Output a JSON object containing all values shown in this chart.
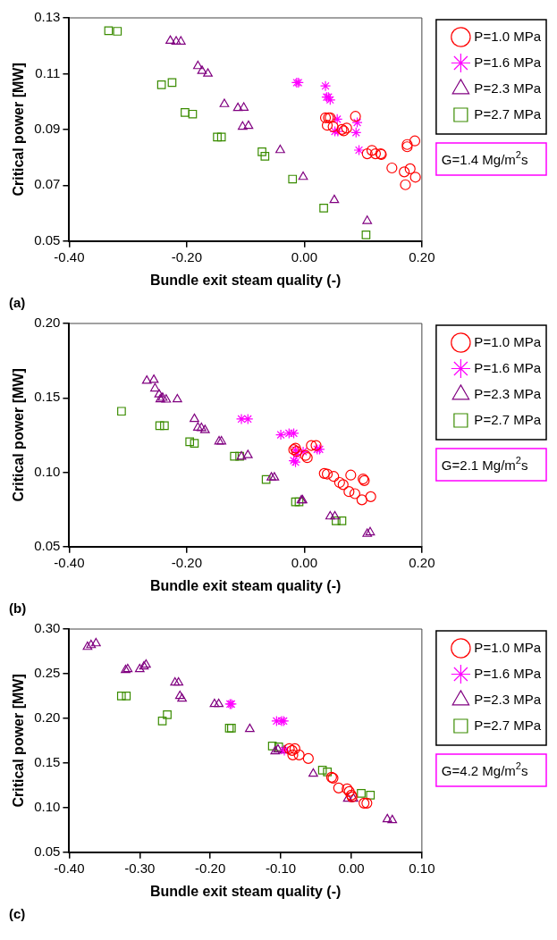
{
  "chart_data": [
    {
      "type": "scatter",
      "xlabel": "Bundle exit steam quality (-)",
      "ylabel": "Critical power [MW]",
      "legend": "right",
      "annotations": [
        "G=1.4 Mg/m$^{2}$s",
        "(a)"
      ],
      "xlim": [
        -0.4,
        0.2
      ],
      "xticks": [
        {
          "value": -0.4,
          "label": "-0.40"
        },
        {
          "value": -0.2,
          "label": "-0.20"
        },
        {
          "value": 0,
          "label": "0.00"
        },
        {
          "value": 0.2,
          "label": "0.20"
        }
      ],
      "ylim": [
        0.05,
        0.13
      ],
      "yticks": [
        0.05,
        0.07,
        0.09,
        0.11,
        0.13
      ],
      "series": [
        {
          "name": "P=1.0 MPa",
          "color": "#ff0000",
          "marker": "circle",
          "x": [
            0.036,
            0.041,
            0.044,
            0.039,
            0.049,
            0.064,
            0.067,
            0.072,
            0.087,
            0.107,
            0.115,
            0.121,
            0.13,
            0.131,
            0.149,
            0.17,
            0.18,
            0.189,
            0.172,
            0.175,
            0.175,
            0.188
          ],
          "values": [
            0.0942,
            0.0942,
            0.0942,
            0.0915,
            0.091,
            0.09,
            0.0895,
            0.0905,
            0.0947,
            0.0813,
            0.0825,
            0.0813,
            0.0813,
            0.081,
            0.0762,
            0.0748,
            0.0759,
            0.0729,
            0.0702,
            0.0846,
            0.0838,
            0.0859
          ]
        },
        {
          "name": "P=1.6 MPa",
          "color": "#ff00ff",
          "marker": "cross",
          "x": [
            -0.013,
            -0.01,
            0.036,
            0.038,
            0.041,
            0.044,
            0.056,
            0.052,
            0.057,
            0.09,
            0.088,
            0.093
          ],
          "values": [
            0.1068,
            0.1068,
            0.1056,
            0.1016,
            0.1016,
            0.1006,
            0.0937,
            0.0893,
            0.0893,
            0.0925,
            0.0889,
            0.0826
          ]
        },
        {
          "name": "P=2.3 MPa",
          "color": "#800080",
          "marker": "triangle",
          "x": [
            -0.228,
            -0.218,
            -0.21,
            -0.181,
            -0.174,
            -0.164,
            -0.136,
            -0.113,
            -0.103,
            -0.105,
            -0.095,
            -0.041,
            -0.002,
            0.051,
            0.107
          ],
          "values": [
            0.1218,
            0.1215,
            0.1215,
            0.1127,
            0.111,
            0.11,
            0.0991,
            0.0977,
            0.0978,
            0.091,
            0.0913,
            0.0826,
            0.073,
            0.0647,
            0.0572
          ]
        },
        {
          "name": "P=2.7 MPa",
          "color": "#3a8c00",
          "marker": "square",
          "x": [
            -0.333,
            -0.318,
            -0.243,
            -0.225,
            -0.203,
            -0.19,
            -0.148,
            -0.141,
            -0.072,
            -0.067,
            -0.02,
            0.033,
            0.105
          ],
          "values": [
            0.1254,
            0.1252,
            0.106,
            0.1068,
            0.0961,
            0.0955,
            0.0873,
            0.0873,
            0.082,
            0.0804,
            0.0722,
            0.0618,
            0.0522
          ]
        }
      ]
    },
    {
      "type": "scatter",
      "xlabel": "Bundle exit steam quality (-)",
      "ylabel": "Critical power [MW]",
      "legend": "right",
      "annotations": [
        "G=2.1 Mg/m$^{2}$s",
        "(b)"
      ],
      "xlim": [
        -0.4,
        0.2
      ],
      "xticks": [
        {
          "value": -0.4,
          "label": "-0.40"
        },
        {
          "value": -0.2,
          "label": "-0.20"
        },
        {
          "value": 0,
          "label": "0.00"
        },
        {
          "value": 0.2,
          "label": "0.20"
        }
      ],
      "ylim": [
        0.05,
        0.2
      ],
      "yticks": [
        0.05,
        {
          "value": 0.1,
          "label": "0.10"
        },
        0.15,
        {
          "value": 0.2,
          "label": "0.20"
        }
      ],
      "series": [
        {
          "name": "P=1.0 MPa",
          "color": "#ff0000",
          "marker": "circle",
          "x": [
            -0.018,
            -0.015,
            -0.013,
            0.002,
            0.005,
            0.012,
            0.02,
            0.034,
            0.039,
            0.05,
            0.06,
            0.066,
            0.076,
            0.086,
            0.098,
            0.113,
            0.079,
            0.1,
            0.102
          ],
          "values": [
            0.1152,
            0.1162,
            0.114,
            0.1113,
            0.1098,
            0.118,
            0.118,
            0.0992,
            0.0988,
            0.0972,
            0.0931,
            0.0917,
            0.087,
            0.0856,
            0.0815,
            0.0836,
            0.0981,
            0.0955,
            0.0944
          ]
        },
        {
          "name": "P=1.6 MPa",
          "color": "#ff00ff",
          "marker": "cross",
          "x": [
            -0.107,
            -0.096,
            -0.04,
            -0.026,
            -0.018,
            -0.015,
            -0.013,
            -0.018,
            -0.002,
            0.022,
            0.026,
            -0.015
          ],
          "values": [
            0.1358,
            0.1358,
            0.1252,
            0.1262,
            0.1262,
            0.115,
            0.1119,
            0.1078,
            0.1139,
            0.1154,
            0.1154,
            0.1068
          ]
        },
        {
          "name": "P=2.3 MPa",
          "color": "#800080",
          "marker": "triangle",
          "x": [
            -0.268,
            -0.256,
            -0.254,
            -0.247,
            -0.241,
            -0.235,
            -0.245,
            -0.216,
            -0.187,
            -0.181,
            -0.175,
            -0.169,
            -0.145,
            -0.141,
            -0.107,
            -0.096,
            -0.056,
            -0.051,
            -0.005,
            -0.003,
            0.044,
            0.052,
            0.107,
            0.112
          ],
          "values": [
            0.1615,
            0.1621,
            0.1563,
            0.1523,
            0.15,
            0.1488,
            0.149,
            0.149,
            0.1358,
            0.13,
            0.1297,
            0.1283,
            0.1207,
            0.1207,
            0.1105,
            0.1115,
            0.0965,
            0.0965,
            0.0811,
            0.0811,
            0.0703,
            0.0703,
            0.0586,
            0.0596
          ]
        },
        {
          "name": "P=2.7 MPa",
          "color": "#3a8c00",
          "marker": "square",
          "x": [
            -0.311,
            -0.246,
            -0.238,
            -0.195,
            -0.187,
            -0.119,
            -0.11,
            -0.065,
            -0.015,
            -0.009,
            0.054,
            0.064
          ],
          "values": [
            0.141,
            0.1313,
            0.1313,
            0.1205,
            0.1195,
            0.1108,
            0.1108,
            0.0951,
            0.0801,
            0.0801,
            0.0674,
            0.0674
          ]
        }
      ]
    },
    {
      "type": "scatter",
      "xlabel": "Bundle exit steam quality (-)",
      "ylabel": "Critical power [MW]",
      "legend": "right",
      "annotations": [
        "G=4.2 Mg/m$^{2}$s",
        "(c)"
      ],
      "xlim": [
        -0.4,
        0.1
      ],
      "xticks": [
        {
          "value": -0.4,
          "label": "-0.40"
        },
        {
          "value": -0.3,
          "label": "-0.30"
        },
        {
          "value": -0.2,
          "label": "-0.20"
        },
        {
          "value": -0.1,
          "label": "-0.10"
        },
        {
          "value": 0,
          "label": "0.00"
        },
        {
          "value": 0.1,
          "label": "0.10"
        }
      ],
      "ylim": [
        0.05,
        0.3
      ],
      "yticks": [
        0.05,
        {
          "value": 0.1,
          "label": "0.10"
        },
        0.15,
        {
          "value": 0.2,
          "label": "0.20"
        },
        0.25,
        {
          "value": 0.3,
          "label": "0.30"
        }
      ],
      "series": [
        {
          "name": "P=1.0 MPa",
          "color": "#ff0000",
          "marker": "circle",
          "x": [
            -0.088,
            -0.083,
            -0.08,
            -0.084,
            -0.074,
            -0.061,
            -0.028,
            -0.026,
            -0.018,
            -0.006,
            -0.003,
            0,
            0.001,
            0.018,
            0.022
          ],
          "values": [
            0.166,
            0.159,
            0.166,
            0.164,
            0.159,
            0.155,
            0.134,
            0.133,
            0.122,
            0.121,
            0.118,
            0.114,
            0.112,
            0.105,
            0.105
          ]
        },
        {
          "name": "P=1.6 MPa",
          "color": "#ff00ff",
          "marker": "cross",
          "x": [
            -0.172,
            -0.17,
            -0.106,
            -0.099,
            -0.096,
            -0.095
          ],
          "values": [
            0.216,
            0.216,
            0.197,
            0.197,
            0.197,
            0.164
          ]
        },
        {
          "name": "P=2.3 MPa",
          "color": "#800080",
          "marker": "triangle",
          "x": [
            -0.374,
            -0.369,
            -0.362,
            -0.32,
            -0.317,
            -0.3,
            -0.294,
            -0.291,
            -0.25,
            -0.245,
            -0.243,
            -0.24,
            -0.194,
            -0.188,
            -0.144,
            -0.108,
            -0.104,
            -0.095,
            -0.054,
            -0.005,
            0.003,
            0.051,
            0.058
          ],
          "values": [
            0.28,
            0.282,
            0.284,
            0.254,
            0.255,
            0.255,
            0.258,
            0.26,
            0.24,
            0.24,
            0.225,
            0.222,
            0.216,
            0.216,
            0.188,
            0.163,
            0.165,
            0.164,
            0.138,
            0.11,
            0.11,
            0.087,
            0.086
          ]
        },
        {
          "name": "P=2.7 MPa",
          "color": "#3a8c00",
          "marker": "square",
          "x": [
            -0.326,
            -0.319,
            -0.268,
            -0.261,
            -0.173,
            -0.17,
            -0.112,
            -0.103,
            -0.041,
            -0.034,
            0.014,
            0.027
          ],
          "values": [
            0.225,
            0.225,
            0.197,
            0.204,
            0.189,
            0.189,
            0.169,
            0.168,
            0.142,
            0.14,
            0.116,
            0.114
          ]
        }
      ]
    }
  ]
}
